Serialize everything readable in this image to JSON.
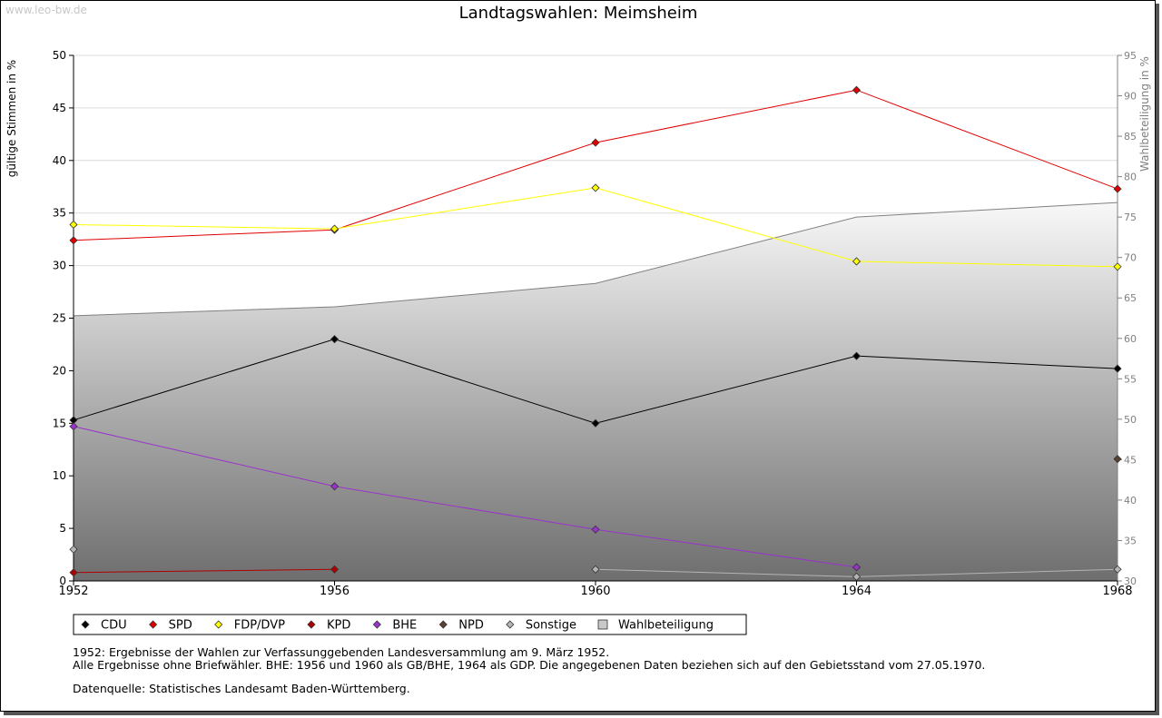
{
  "watermark": "www.leo-bw.de",
  "chart_data": {
    "type": "line",
    "title": "Landtagswahlen: Meimsheim",
    "ylabel": "gültige Stimmen in %",
    "y2label": "Wahlbeteiligung in %",
    "xlabel": "",
    "x": [
      1952,
      1956,
      1960,
      1964,
      1968
    ],
    "ylim": [
      0,
      50
    ],
    "y2lim": [
      30,
      95
    ],
    "yticks": [
      0,
      5,
      10,
      15,
      20,
      25,
      30,
      35,
      40,
      45,
      50
    ],
    "y2ticks": [
      30,
      35,
      40,
      45,
      50,
      55,
      60,
      65,
      70,
      75,
      80,
      85,
      90,
      95
    ],
    "grid": true,
    "legend_position": "bottom",
    "series": [
      {
        "name": "CDU",
        "color": "#000000",
        "values": [
          15.3,
          23.0,
          15.0,
          21.4,
          20.2
        ]
      },
      {
        "name": "SPD",
        "color": "#e00000",
        "values": [
          32.4,
          33.4,
          41.7,
          46.7,
          37.3
        ]
      },
      {
        "name": "FDP/DVP",
        "color": "#ffff00",
        "values": [
          33.9,
          33.5,
          37.4,
          30.4,
          29.9
        ]
      },
      {
        "name": "KPD",
        "color": "#b00000",
        "values": [
          0.8,
          1.1,
          null,
          null,
          null
        ]
      },
      {
        "name": "BHE",
        "color": "#9933cc",
        "values": [
          14.7,
          9.0,
          4.9,
          1.3,
          null
        ]
      },
      {
        "name": "NPD",
        "color": "#5c4033",
        "values": [
          null,
          null,
          null,
          null,
          11.6
        ]
      },
      {
        "name": "Sonstige",
        "color": "#b4b4b4",
        "values": [
          3.0,
          null,
          1.1,
          0.4,
          1.1
        ]
      }
    ],
    "turnout": {
      "name": "Wahlbeteiligung",
      "axis": "right",
      "values": [
        62.8,
        63.9,
        66.8,
        75.0,
        76.8
      ]
    }
  },
  "notes": {
    "line1": "1952: Ergebnisse der Wahlen zur Verfassunggebenden Landesversammlung am 9. März 1952.",
    "line2": "Alle Ergebnisse ohne Briefwähler. BHE: 1956 und 1960 als GB/BHE, 1964 als GDP. Die angegebenen Daten beziehen sich auf den Gebietsstand vom 27.05.1970.",
    "source": "Datenquelle: Statistisches Landesamt Baden-Württemberg."
  }
}
